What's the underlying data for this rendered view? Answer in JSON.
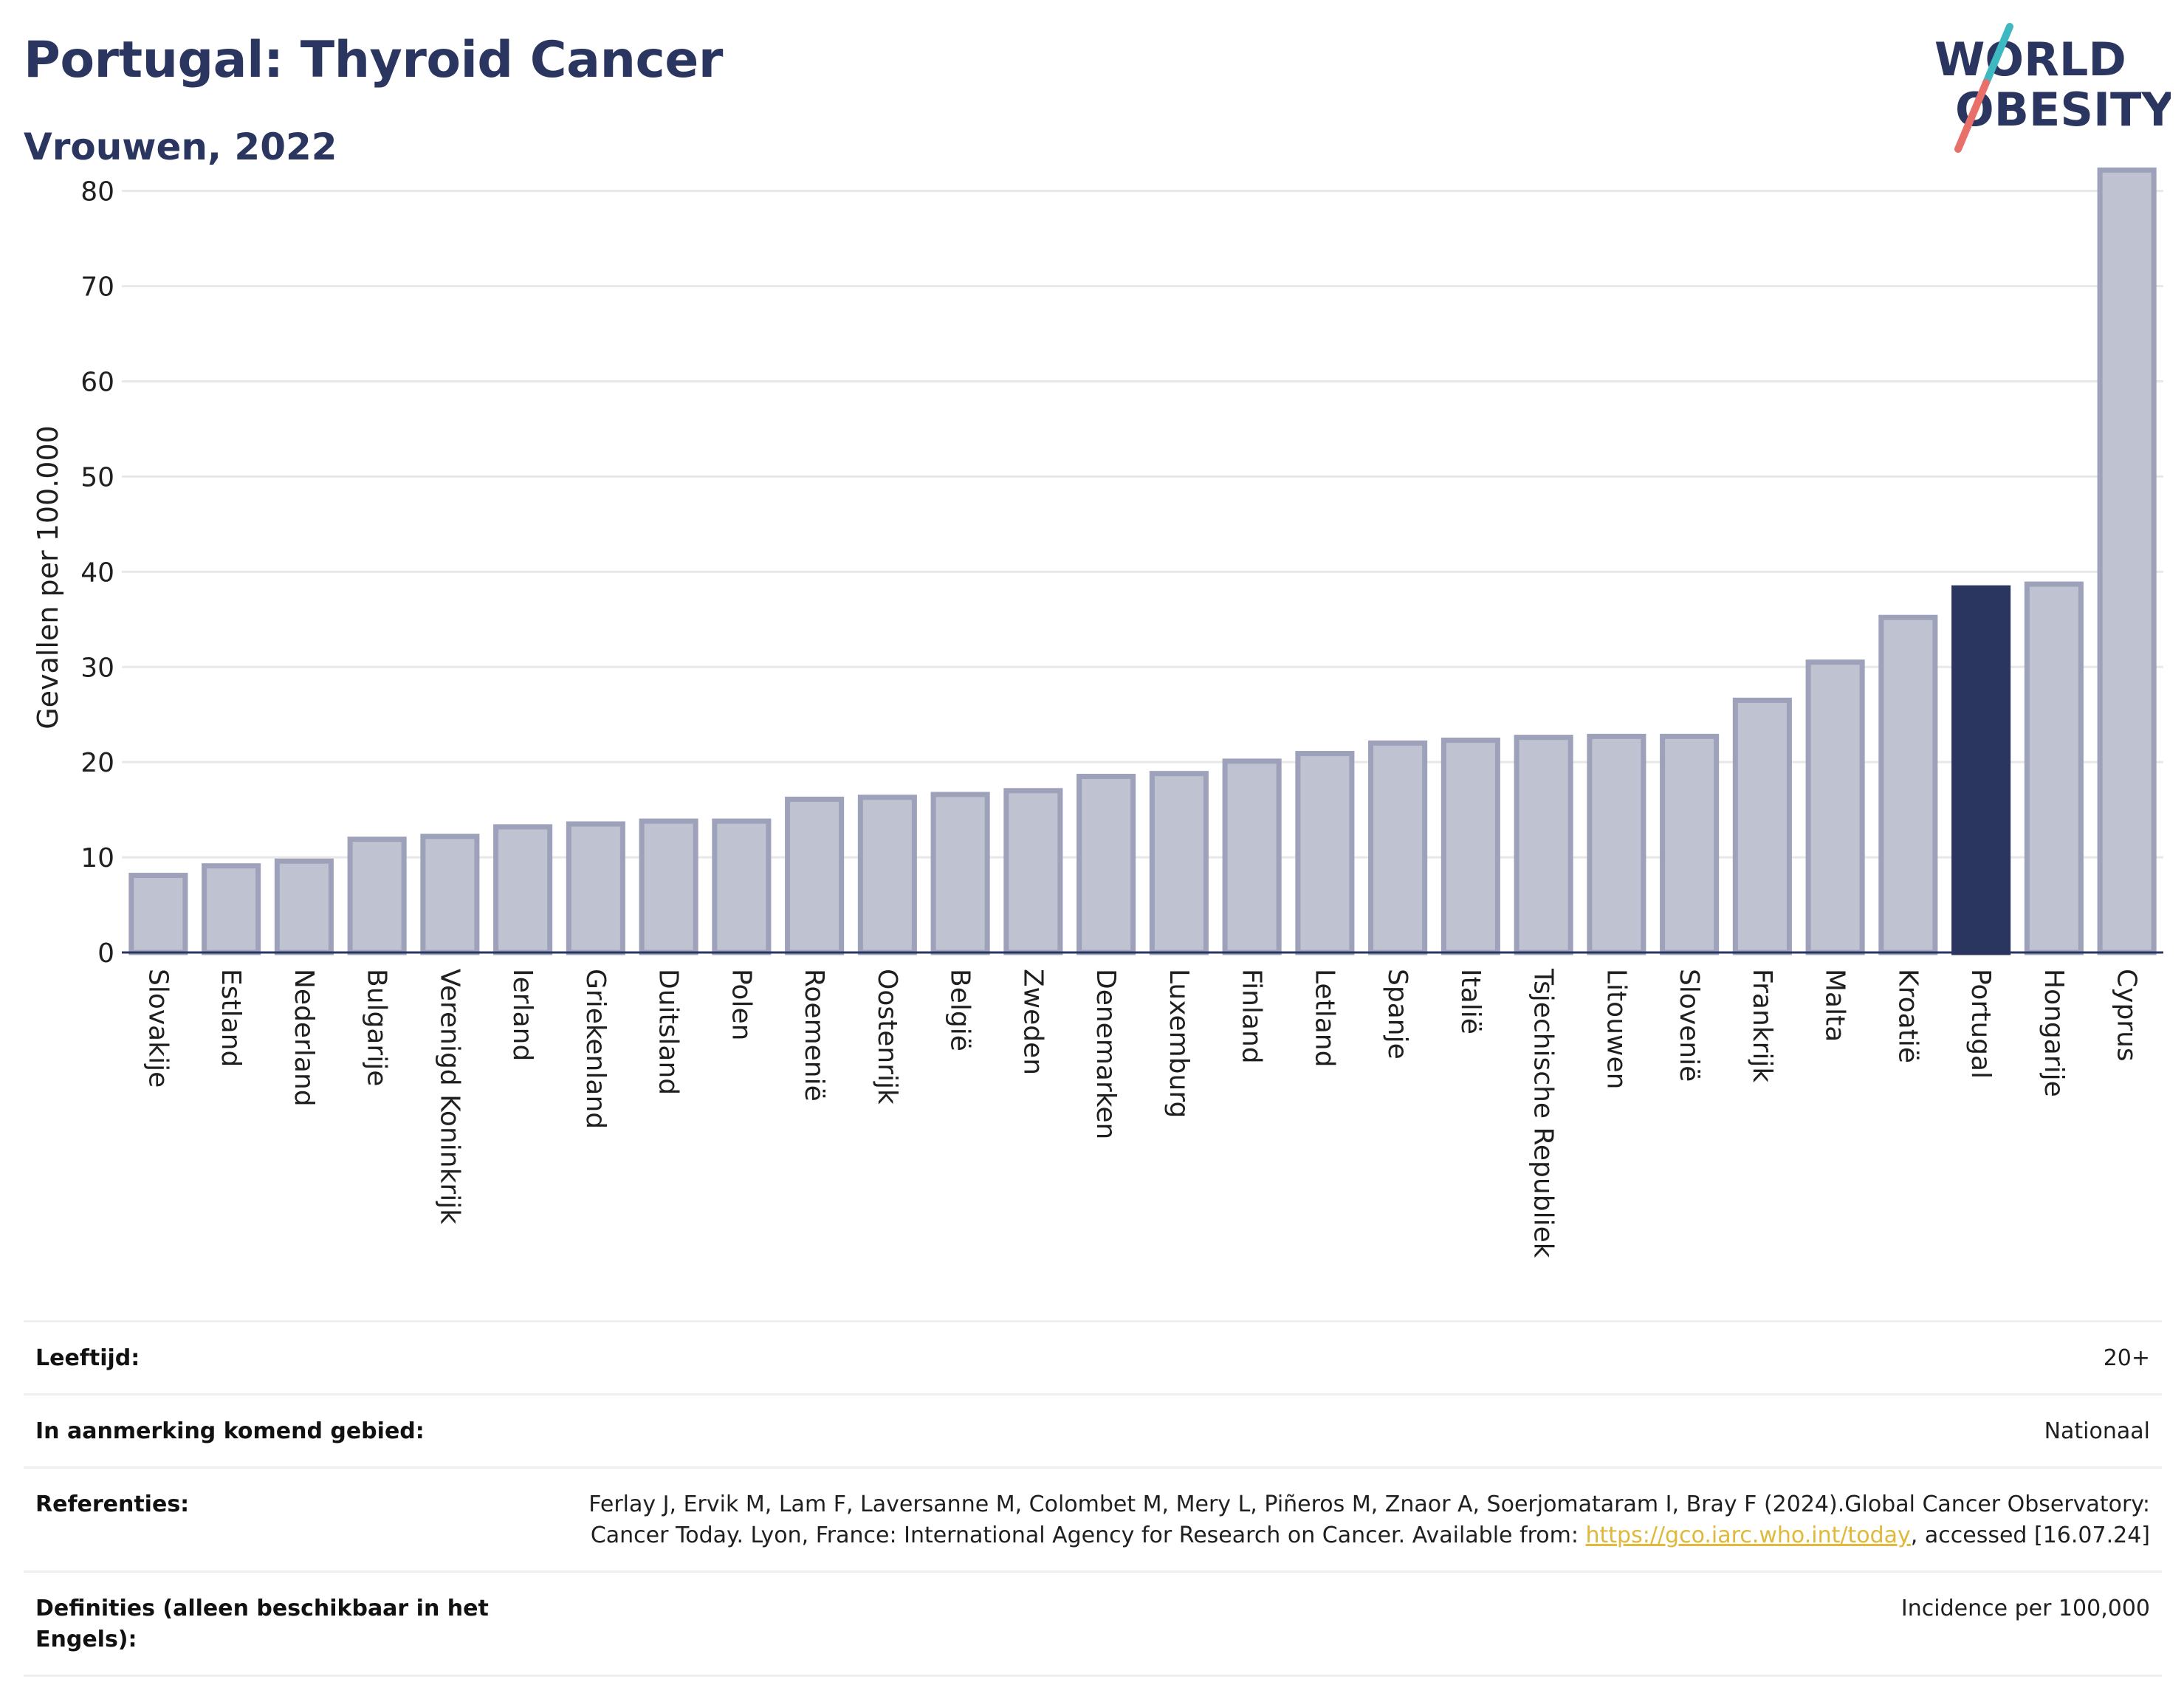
{
  "header": {
    "title": "Portugal: Thyroid Cancer",
    "subtitle": "Vrouwen, 2022"
  },
  "logo": {
    "line1": "WORLD",
    "line2": "OBESITY",
    "colors": {
      "text": "#2b3660",
      "slash_top": "#3fb9c1",
      "slash_bottom": "#e9706a"
    }
  },
  "colors": {
    "bar": "#bfc2d0",
    "bar_border": "#9da1ba",
    "highlight": "#2b3660",
    "grid": "#e8e8e8",
    "axis": "#2b3660"
  },
  "chart_data": {
    "type": "bar",
    "ylabel": "Gevallen per 100.000",
    "xlabel": "",
    "ylim": [
      0,
      83
    ],
    "yticks": [
      0,
      10,
      20,
      30,
      40,
      50,
      60,
      70,
      80
    ],
    "grid": true,
    "highlight": "Portugal",
    "categories": [
      "Slovakije",
      "Estland",
      "Nederland",
      "Bulgarije",
      "Verenigd Koninkrijk",
      "Ierland",
      "Griekenland",
      "Duitsland",
      "Polen",
      "Roemenië",
      "Oostenrijk",
      "België",
      "Zweden",
      "Denemarken",
      "Luxemburg",
      "Finland",
      "Letland",
      "Spanje",
      "Italië",
      "Tsjechische Republiek",
      "Litouwen",
      "Slovenië",
      "Frankrijk",
      "Malta",
      "Kroatië",
      "Portugal",
      "Hongarije",
      "Cyprus"
    ],
    "values": [
      8.1,
      9.1,
      9.6,
      11.9,
      12.2,
      13.2,
      13.5,
      13.8,
      13.8,
      16.1,
      16.3,
      16.6,
      17.0,
      18.5,
      18.8,
      20.1,
      20.9,
      22.0,
      22.3,
      22.6,
      22.7,
      22.7,
      26.5,
      30.5,
      35.2,
      38.3,
      38.7,
      82.2
    ]
  },
  "meta": {
    "age_label": "Leeftijd:",
    "age_value": "20+",
    "area_label": "In aanmerking komend gebied:",
    "area_value": "Nationaal",
    "ref_label": "Referenties:",
    "ref_text_1": "Ferlay J, Ervik M, Lam F, Laversanne M, Colombet M, Mery L, Piñeros M, Znaor A, Soerjomataram I, Bray F (2024).Global Cancer Observatory: Cancer Today. Lyon, France: International Agency for Research on Cancer. Available from: ",
    "ref_link": "https://gco.iarc.who.int/today",
    "ref_text_2": ", accessed [16.07.24]",
    "def_label": "Definities (alleen beschikbaar in het Engels):",
    "def_value": "Incidence per 100,000"
  }
}
